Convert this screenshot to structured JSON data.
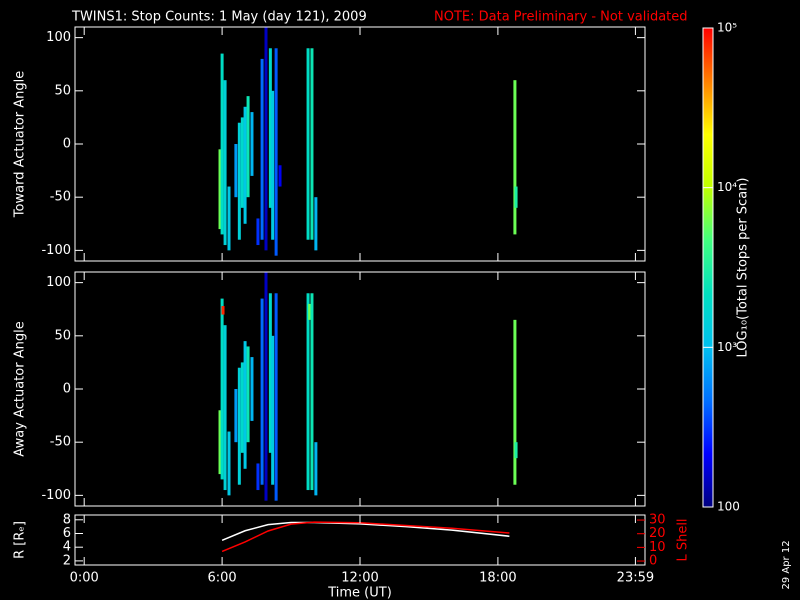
{
  "title": "TWINS1: Stop Counts:  1 May (day 121), 2009",
  "note": "NOTE: Data Preliminary - Not validated",
  "date_stamp": "29 Apr 12",
  "chart_data": [
    {
      "type": "spectrogram",
      "ylabel": "Toward Actuator Angle",
      "xlim": [
        -0.4,
        24.4
      ],
      "ylim": [
        -110,
        110
      ],
      "yticks": [
        -100,
        -50,
        0,
        50,
        100
      ],
      "columns": [
        {
          "x": 5.91,
          "y0": -80,
          "y1": -5,
          "z": 6000
        },
        {
          "x": 6.0,
          "y0": -85,
          "y1": 85,
          "z": 2000
        },
        {
          "x": 6.13,
          "y0": -95,
          "y1": 60,
          "z": 1500
        },
        {
          "x": 6.3,
          "y0": -100,
          "y1": -40,
          "z": 1200
        },
        {
          "x": 6.6,
          "y0": -50,
          "y1": 0,
          "z": 700
        },
        {
          "x": 6.75,
          "y0": -90,
          "y1": 20,
          "z": 1500
        },
        {
          "x": 6.88,
          "y0": -60,
          "y1": 25,
          "z": 1800
        },
        {
          "x": 7.0,
          "y0": -75,
          "y1": 35,
          "z": 1200
        },
        {
          "x": 7.13,
          "y0": -50,
          "y1": 45,
          "z": 2500
        },
        {
          "x": 7.3,
          "y0": -30,
          "y1": 30,
          "z": 900
        },
        {
          "x": 7.56,
          "y0": -95,
          "y1": -70,
          "z": 300
        },
        {
          "x": 7.74,
          "y0": -90,
          "y1": 80,
          "z": 450
        },
        {
          "x": 7.91,
          "y0": -100,
          "y1": 110,
          "z": 150
        },
        {
          "x": 8.1,
          "y0": -60,
          "y1": 90,
          "z": 1800
        },
        {
          "x": 8.2,
          "y0": -90,
          "y1": 50,
          "z": 1300
        },
        {
          "x": 8.35,
          "y0": -105,
          "y1": 90,
          "z": 400
        },
        {
          "x": 8.52,
          "y0": -40,
          "y1": -20,
          "z": 200
        },
        {
          "x": 9.74,
          "y0": -90,
          "y1": 90,
          "z": 2000
        },
        {
          "x": 9.91,
          "y0": -90,
          "y1": 90,
          "z": 2500
        },
        {
          "x": 10.08,
          "y0": -100,
          "y1": -50,
          "z": 900
        },
        {
          "x": 18.74,
          "y0": -85,
          "y1": 60,
          "z": 6000
        },
        {
          "x": 18.79,
          "y0": -60,
          "y1": -40,
          "z": 3000
        }
      ]
    },
    {
      "type": "spectrogram",
      "ylabel": "Away Actuator Angle",
      "xlim": [
        -0.4,
        24.4
      ],
      "ylim": [
        -110,
        110
      ],
      "yticks": [
        -100,
        -50,
        0,
        50,
        100
      ],
      "columns": [
        {
          "x": 5.91,
          "y0": -80,
          "y1": -20,
          "z": 6000
        },
        {
          "x": 6.0,
          "y0": -85,
          "y1": 85,
          "z": 2000
        },
        {
          "x": 6.04,
          "y0": 70,
          "y1": 78,
          "z": 80000
        },
        {
          "x": 6.13,
          "y0": -95,
          "y1": 60,
          "z": 1500
        },
        {
          "x": 6.3,
          "y0": -100,
          "y1": -40,
          "z": 1200
        },
        {
          "x": 6.6,
          "y0": -50,
          "y1": 0,
          "z": 700
        },
        {
          "x": 6.75,
          "y0": -90,
          "y1": 20,
          "z": 1500
        },
        {
          "x": 6.88,
          "y0": -60,
          "y1": 25,
          "z": 1800
        },
        {
          "x": 7.0,
          "y0": -75,
          "y1": 45,
          "z": 1200
        },
        {
          "x": 7.13,
          "y0": -50,
          "y1": 40,
          "z": 2500
        },
        {
          "x": 7.3,
          "y0": -30,
          "y1": 30,
          "z": 900
        },
        {
          "x": 7.56,
          "y0": -95,
          "y1": -70,
          "z": 300
        },
        {
          "x": 7.74,
          "y0": -90,
          "y1": 85,
          "z": 450
        },
        {
          "x": 7.91,
          "y0": -105,
          "y1": 110,
          "z": 150
        },
        {
          "x": 8.1,
          "y0": -60,
          "y1": 90,
          "z": 1800
        },
        {
          "x": 8.2,
          "y0": -90,
          "y1": 50,
          "z": 1300
        },
        {
          "x": 8.35,
          "y0": -105,
          "y1": 90,
          "z": 400
        },
        {
          "x": 9.74,
          "y0": -95,
          "y1": 90,
          "z": 2000
        },
        {
          "x": 9.81,
          "y0": 65,
          "y1": 80,
          "z": 6000
        },
        {
          "x": 9.91,
          "y0": -95,
          "y1": 90,
          "z": 2500
        },
        {
          "x": 10.08,
          "y0": -100,
          "y1": -50,
          "z": 900
        },
        {
          "x": 18.74,
          "y0": -90,
          "y1": 65,
          "z": 6000
        },
        {
          "x": 18.79,
          "y0": -65,
          "y1": -50,
          "z": 3000
        }
      ]
    },
    {
      "type": "line",
      "ylabel": "R [Rₑ]",
      "y2label": "L Shell",
      "xlabel": "Time (UT)",
      "xlim": [
        -0.4,
        24.4
      ],
      "xticks": [
        {
          "value": 0,
          "label": "0:00"
        },
        {
          "value": 6,
          "label": "6:00"
        },
        {
          "value": 12,
          "label": "12:00"
        },
        {
          "value": 18,
          "label": "18:00"
        },
        {
          "value": 23.983,
          "label": "23:59"
        }
      ],
      "ylim": [
        1.4,
        8.7
      ],
      "yticks": [
        2,
        4,
        6,
        8
      ],
      "y2lim": [
        -2.9,
        33.7
      ],
      "y2ticks": [
        0,
        10,
        20,
        30
      ],
      "x": [
        6,
        7,
        8,
        9,
        10,
        12,
        14,
        16,
        18.5
      ],
      "series": [
        {
          "color": "#ffffff",
          "values": [
            5.0,
            6.4,
            7.3,
            7.6,
            7.6,
            7.4,
            7.0,
            6.5,
            5.6
          ]
        },
        {
          "color": "#ff0000",
          "axis": "y2",
          "values": [
            7,
            14,
            22,
            27,
            28.5,
            28,
            26,
            24,
            20.5
          ]
        }
      ]
    },
    {
      "type": "colorbar",
      "label": "LOG₁₀(Total Stops per Scan)",
      "log": true,
      "zlim": [
        100,
        100000
      ],
      "ticks": [
        {
          "value": 100,
          "label": "100"
        },
        {
          "value": 1000,
          "label": "10³"
        },
        {
          "value": 10000,
          "label": "10⁴"
        },
        {
          "value": 100000,
          "label": "10⁵"
        }
      ],
      "colormap": [
        "#000080",
        "#0000ff",
        "#0070ff",
        "#00c0f0",
        "#00e0c0",
        "#40ff80",
        "#c0ff00",
        "#ffff00",
        "#ff8000",
        "#ff0000"
      ]
    }
  ]
}
